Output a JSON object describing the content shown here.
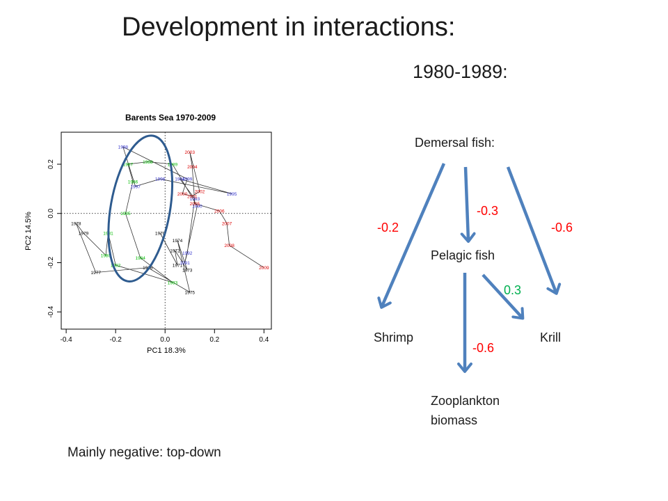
{
  "slide": {
    "title": "Development in interactions:",
    "period": "1980-1989:",
    "footer": "Mainly negative: top-down"
  },
  "colors": {
    "arrow": "#4f81bd",
    "negative": "#ff0000",
    "positive": "#00b050",
    "ellipse": "#2e5b8f",
    "year_black": "#000000",
    "year_green": "#00bb00",
    "year_blue": "#3333cc",
    "year_red": "#dd0000"
  },
  "diagram": {
    "nodes": {
      "demersal": "Demersal fish:",
      "pelagic": "Pelagic fish",
      "shrimp": "Shrimp",
      "krill": "Krill",
      "zooplankton_line1": "Zooplankton",
      "zooplankton_line2": "biomass"
    },
    "edges": [
      {
        "from": "demersal",
        "to": "shrimp",
        "value": "-0.2",
        "sign": "negative"
      },
      {
        "from": "demersal",
        "to": "pelagic",
        "value": "-0.3",
        "sign": "negative"
      },
      {
        "from": "demersal",
        "to": "krill",
        "value": "-0.6",
        "sign": "negative"
      },
      {
        "from": "pelagic",
        "to": "krill",
        "value": "0.3",
        "sign": "positive"
      },
      {
        "from": "pelagic",
        "to": "zooplankton",
        "value": "-0.6",
        "sign": "negative"
      }
    ]
  },
  "chart_data": {
    "type": "scatter",
    "title": "Barents Sea 1970-2009",
    "xlabel": "PC1 18.3%",
    "ylabel": "PC2 14.5%",
    "xlim": [
      -0.42,
      0.43
    ],
    "ylim": [
      -0.47,
      0.33
    ],
    "xticks": [
      "-0.4",
      "-0.2",
      "0.0",
      "0.2",
      "0.4"
    ],
    "yticks": [
      "-0.4",
      "-0.2",
      "0.0",
      "0.2"
    ],
    "reference_lines": {
      "x": 0,
      "y": 0
    },
    "path_order": "chronological",
    "points": [
      {
        "year": "1970",
        "x": -0.02,
        "y": -0.08,
        "group": "black"
      },
      {
        "year": "1971",
        "x": 0.05,
        "y": -0.21,
        "group": "black"
      },
      {
        "year": "1972",
        "x": 0.04,
        "y": -0.15,
        "group": "black"
      },
      {
        "year": "1973",
        "x": 0.09,
        "y": -0.23,
        "group": "black"
      },
      {
        "year": "1974",
        "x": 0.05,
        "y": -0.11,
        "group": "black"
      },
      {
        "year": "1975",
        "x": 0.1,
        "y": -0.32,
        "group": "black"
      },
      {
        "year": "1976",
        "x": -0.07,
        "y": -0.22,
        "group": "black"
      },
      {
        "year": "1977",
        "x": -0.28,
        "y": -0.24,
        "group": "black"
      },
      {
        "year": "1978",
        "x": -0.36,
        "y": -0.04,
        "group": "black"
      },
      {
        "year": "1979",
        "x": -0.33,
        "y": -0.08,
        "group": "black"
      },
      {
        "year": "1980",
        "x": -0.24,
        "y": -0.17,
        "group": "green"
      },
      {
        "year": "1981",
        "x": -0.23,
        "y": -0.08,
        "group": "green"
      },
      {
        "year": "1982",
        "x": -0.2,
        "y": -0.21,
        "group": "green"
      },
      {
        "year": "1983",
        "x": 0.03,
        "y": -0.28,
        "group": "green"
      },
      {
        "year": "1984",
        "x": -0.1,
        "y": -0.18,
        "group": "green"
      },
      {
        "year": "1985",
        "x": -0.16,
        "y": 0.0,
        "group": "green"
      },
      {
        "year": "1986",
        "x": -0.13,
        "y": 0.13,
        "group": "green"
      },
      {
        "year": "1987",
        "x": -0.15,
        "y": 0.2,
        "group": "green"
      },
      {
        "year": "1988",
        "x": -0.07,
        "y": 0.21,
        "group": "green"
      },
      {
        "year": "1989",
        "x": 0.03,
        "y": 0.2,
        "group": "green"
      },
      {
        "year": "1990",
        "x": 0.13,
        "y": 0.03,
        "group": "blue"
      },
      {
        "year": "1991",
        "x": 0.08,
        "y": -0.2,
        "group": "blue"
      },
      {
        "year": "1992",
        "x": 0.09,
        "y": -0.16,
        "group": "blue"
      },
      {
        "year": "1993",
        "x": 0.12,
        "y": 0.06,
        "group": "blue"
      },
      {
        "year": "1994",
        "x": 0.06,
        "y": 0.14,
        "group": "blue"
      },
      {
        "year": "1995",
        "x": 0.27,
        "y": 0.08,
        "group": "blue"
      },
      {
        "year": "1996",
        "x": -0.02,
        "y": 0.14,
        "group": "blue"
      },
      {
        "year": "1997",
        "x": -0.12,
        "y": 0.11,
        "group": "blue"
      },
      {
        "year": "1998",
        "x": -0.17,
        "y": 0.27,
        "group": "blue"
      },
      {
        "year": "1999",
        "x": 0.09,
        "y": 0.14,
        "group": "blue"
      },
      {
        "year": "2000",
        "x": 0.07,
        "y": 0.08,
        "group": "red"
      },
      {
        "year": "2001",
        "x": 0.11,
        "y": 0.07,
        "group": "red"
      },
      {
        "year": "2002",
        "x": 0.14,
        "y": 0.09,
        "group": "red"
      },
      {
        "year": "2003",
        "x": 0.1,
        "y": 0.25,
        "group": "red"
      },
      {
        "year": "2004",
        "x": 0.11,
        "y": 0.19,
        "group": "red"
      },
      {
        "year": "2005",
        "x": 0.12,
        "y": 0.04,
        "group": "red"
      },
      {
        "year": "2006",
        "x": 0.22,
        "y": 0.01,
        "group": "red"
      },
      {
        "year": "2007",
        "x": 0.25,
        "y": -0.04,
        "group": "red"
      },
      {
        "year": "2008",
        "x": 0.26,
        "y": -0.13,
        "group": "red"
      },
      {
        "year": "2009",
        "x": 0.4,
        "y": -0.22,
        "group": "red"
      }
    ],
    "highlight_ellipse": {
      "center_x": -0.1,
      "center_y": 0.02,
      "radius_x": 0.12,
      "radius_y": 0.3,
      "rotation_deg": 10,
      "covers": "1980-1989"
    }
  }
}
